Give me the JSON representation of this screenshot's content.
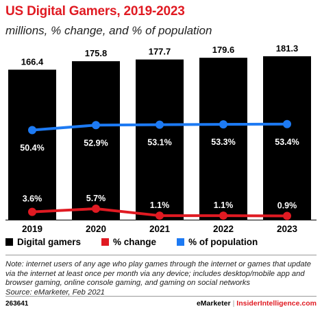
{
  "header": {
    "title": "US Digital Gamers, 2019-2023",
    "subtitle": "millions, % change, and % of population"
  },
  "chart_data": {
    "type": "bar",
    "categories": [
      "2019",
      "2020",
      "2021",
      "2022",
      "2023"
    ],
    "series": [
      {
        "name": "Digital gamers",
        "type": "bar",
        "color": "#000000",
        "values": [
          166.4,
          175.8,
          177.7,
          179.6,
          181.3
        ],
        "labels": [
          "166.4",
          "175.8",
          "177.7",
          "179.6",
          "181.3"
        ]
      },
      {
        "name": "% change",
        "type": "line",
        "color": "#e01a22",
        "values": [
          3.6,
          5.7,
          1.1,
          1.1,
          0.9
        ],
        "labels": [
          "3.6%",
          "5.7%",
          "1.1%",
          "1.1%",
          "0.9%"
        ]
      },
      {
        "name": "% of population",
        "type": "line",
        "color": "#1d7af3",
        "values": [
          50.4,
          52.9,
          53.1,
          53.3,
          53.4
        ],
        "labels": [
          "50.4%",
          "52.9%",
          "53.1%",
          "53.3%",
          "53.4%"
        ]
      }
    ],
    "legend_position": "bottom-left",
    "grid": false
  },
  "legend": {
    "items": [
      {
        "label": "Digital gamers",
        "color": "#000000"
      },
      {
        "label": "% change",
        "color": "#e01a22"
      },
      {
        "label": "% of population",
        "color": "#1d7af3"
      }
    ]
  },
  "footer": {
    "note": "Note: internet users of any age who play games through the internet or games that update via the internet at least once per month via any device; includes desktop/mobile app and browser gaming, online console gaming, and gaming on social networks",
    "source": "Source: eMarketer, Feb 2021",
    "chart_id": "263641",
    "brand_left": "eMarketer",
    "brand_sep": "|",
    "brand_right": "InsiderIntelligence.com"
  }
}
